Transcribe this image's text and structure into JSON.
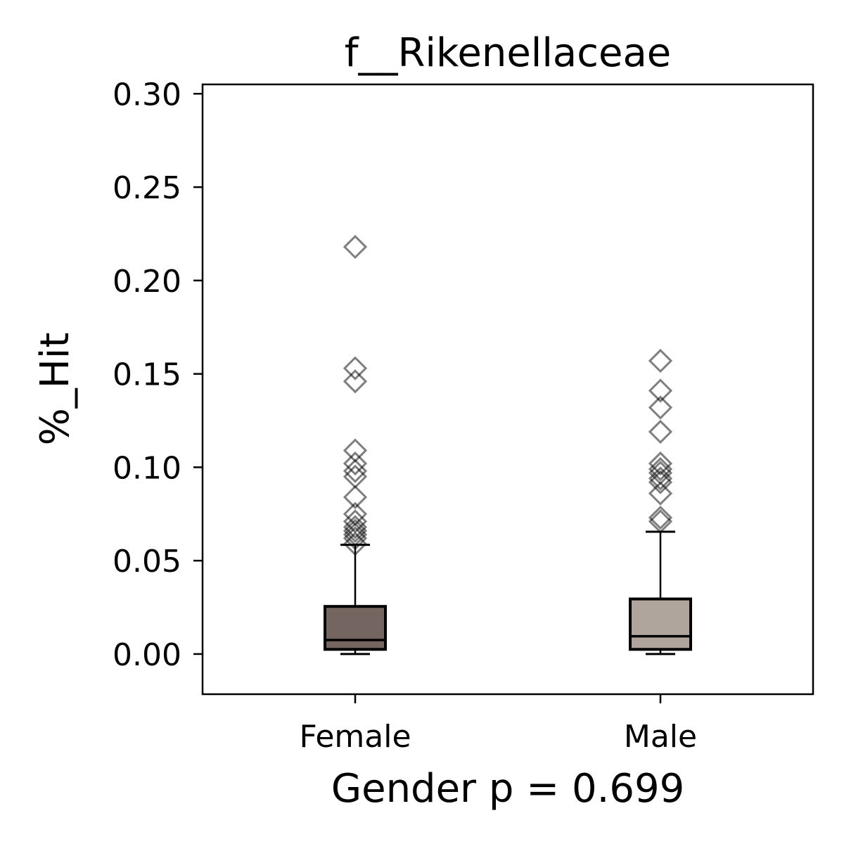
{
  "chart_data": {
    "type": "box",
    "title": "f__Rikenellaceae",
    "xlabel": "Gender p = 0.699",
    "ylabel": "%_Hit",
    "ylim": [
      -0.0215,
      0.305
    ],
    "yticks": [
      "0.00",
      "0.05",
      "0.10",
      "0.15",
      "0.20",
      "0.25",
      "0.30"
    ],
    "grid": false,
    "categories": [
      "Female",
      "Male"
    ],
    "boxes": [
      {
        "name": "Female",
        "color": "#756560",
        "q1": 0.0025,
        "median": 0.0075,
        "q3": 0.0255,
        "whisker_low": 0.0,
        "whisker_high": 0.0585,
        "outliers": [
          0.218,
          0.153,
          0.146,
          0.109,
          0.102,
          0.098,
          0.095,
          0.084,
          0.075,
          0.071,
          0.068,
          0.066,
          0.064,
          0.062,
          0.059
        ]
      },
      {
        "name": "Male",
        "color": "#b0a59c",
        "q1": 0.0025,
        "median": 0.0095,
        "q3": 0.0295,
        "whisker_low": 0.0,
        "whisker_high": 0.0655,
        "outliers": [
          0.157,
          0.141,
          0.132,
          0.119,
          0.102,
          0.099,
          0.097,
          0.094,
          0.092,
          0.086,
          0.073,
          0.071
        ]
      }
    ]
  }
}
